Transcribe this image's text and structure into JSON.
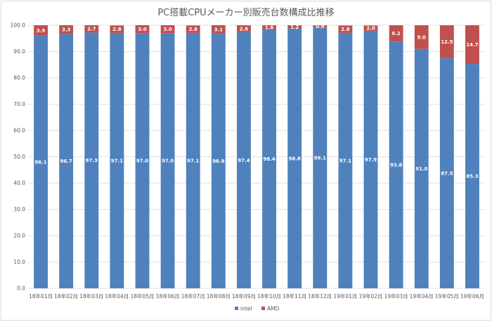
{
  "chart_data": {
    "type": "bar",
    "stacked": true,
    "title": "PC搭載CPUメーカー別販売台数構成比推移",
    "xlabel": "",
    "ylabel": "",
    "ylim": [
      0,
      100
    ],
    "yticks": [
      "0.0",
      "10.0",
      "20.0",
      "30.0",
      "40.0",
      "50.0",
      "60.0",
      "70.0",
      "80.0",
      "90.0",
      "100.0"
    ],
    "grid": true,
    "legend_position": "bottom",
    "categories": [
      "18年01月",
      "18年02月",
      "18年03月",
      "18年04月",
      "18年05月",
      "18年06月",
      "18年07月",
      "18年08月",
      "18年09月",
      "18年10月",
      "18年11月",
      "18年12月",
      "19年01月",
      "19年02月",
      "19年03月",
      "19年04月",
      "19年05月",
      "19年06月"
    ],
    "series": [
      {
        "name": "intel",
        "color": "#4f81bd",
        "values": [
          96.1,
          96.7,
          97.3,
          97.1,
          97.0,
          97.0,
          97.1,
          96.9,
          97.4,
          98.4,
          98.8,
          99.1,
          97.1,
          97.9,
          93.8,
          91.0,
          87.5,
          85.3
        ],
        "labels": [
          "96.1",
          "96.7",
          "97.3",
          "97.1",
          "97.0",
          "97.0",
          "97.1",
          "96.9",
          "97.4",
          "98.4",
          "98.8",
          "99.1",
          "97.1",
          "97.9",
          "93.8",
          "91.0",
          "87.5",
          "85.3"
        ]
      },
      {
        "name": "AMD",
        "color": "#c0504d",
        "values": [
          3.9,
          3.3,
          2.7,
          2.8,
          3.0,
          3.0,
          2.8,
          3.1,
          2.6,
          1.6,
          1.2,
          0.9,
          2.8,
          2.0,
          6.2,
          9.0,
          12.5,
          14.7
        ],
        "labels": [
          "3.9",
          "3.3",
          "2.7",
          "2.8",
          "3.0",
          "3.0",
          "2.8",
          "3.1",
          "2.6",
          "1.6",
          "1.2",
          "0.9",
          "2.8",
          "2.0",
          "6.2",
          "9.0",
          "12.5",
          "14.7"
        ]
      }
    ]
  }
}
